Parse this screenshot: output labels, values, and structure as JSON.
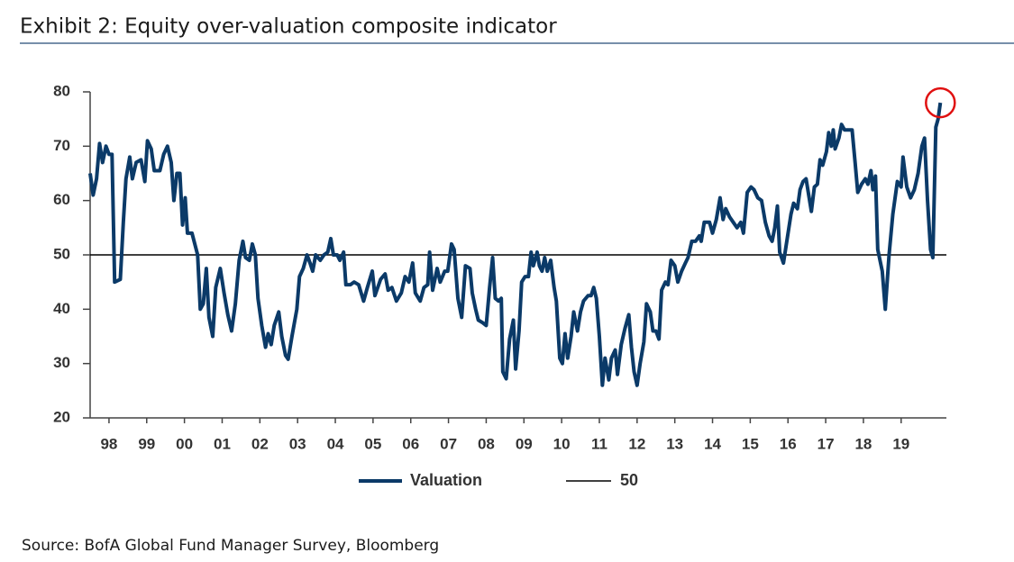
{
  "chart_data": {
    "type": "line",
    "title": "Exhibit 2: Equity over-valuation composite indicator",
    "source": "Source: BofA Global Fund Manager Survey, Bloomberg",
    "x": [
      1998.0,
      1998.08,
      1998.17,
      1998.25,
      1998.33,
      1998.42,
      1998.5,
      1998.58,
      1998.65,
      1998.8,
      1998.88,
      1998.95,
      1999.05,
      1999.12,
      1999.22,
      1999.35,
      1999.45,
      1999.52,
      1999.62,
      1999.7,
      1999.85,
      1999.95,
      2000.05,
      2000.15,
      2000.22,
      2000.3,
      2000.38,
      2000.45,
      2000.52,
      2000.58,
      2000.7,
      2000.85,
      2000.92,
      2001.0,
      2001.08,
      2001.15,
      2001.25,
      2001.33,
      2001.45,
      2001.55,
      2001.65,
      2001.75,
      2001.85,
      2001.95,
      2002.05,
      2002.12,
      2002.22,
      2002.3,
      2002.38,
      2002.45,
      2002.55,
      2002.65,
      2002.72,
      2002.8,
      2002.88,
      2003.0,
      2003.08,
      2003.18,
      2003.25,
      2003.35,
      2003.48,
      2003.55,
      2003.65,
      2003.75,
      2003.83,
      2003.9,
      2003.98,
      2004.1,
      2004.2,
      2004.3,
      2004.38,
      2004.45,
      2004.55,
      2004.62,
      2004.72,
      2004.78,
      2004.9,
      2005.0,
      2005.12,
      2005.25,
      2005.35,
      2005.48,
      2005.55,
      2005.7,
      2005.82,
      2005.9,
      2006.0,
      2006.12,
      2006.25,
      2006.35,
      2006.45,
      2006.55,
      2006.62,
      2006.75,
      2006.85,
      2006.95,
      2007.0,
      2007.08,
      2007.2,
      2007.28,
      2007.4,
      2007.48,
      2007.58,
      2007.65,
      2007.75,
      2007.85,
      2007.95,
      2008.07,
      2008.13,
      2008.22,
      2008.29,
      2008.41,
      2008.5,
      2008.59,
      2008.67,
      2008.74,
      2008.83,
      2008.9,
      2008.94,
      2009.03,
      2009.12,
      2009.22,
      2009.28,
      2009.37,
      2009.44,
      2009.53,
      2009.62,
      2009.69,
      2009.75,
      2009.85,
      2009.91,
      2009.98,
      2010.05,
      2010.12,
      2010.21,
      2010.3,
      2010.36,
      2010.45,
      2010.52,
      2010.59,
      2010.66,
      2010.75,
      2010.82,
      2010.92,
      2011.0,
      2011.08,
      2011.2,
      2011.28,
      2011.35,
      2011.42,
      2011.5,
      2011.58,
      2011.65,
      2011.75,
      2011.82,
      2011.92,
      2011.98,
      2012.08,
      2012.18,
      2012.28,
      2012.35,
      2012.42,
      2012.5,
      2012.58,
      2012.68,
      2012.75,
      2012.85,
      2012.92,
      2013.0,
      2013.08,
      2013.15,
      2013.25,
      2013.32,
      2013.4,
      2013.5,
      2013.58,
      2013.68,
      2013.78,
      2013.85,
      2013.95,
      2014.05,
      2014.15,
      2014.2,
      2014.28,
      2014.42,
      2014.5,
      2014.6,
      2014.7,
      2014.78,
      2014.85,
      2014.95,
      2015.05,
      2015.15,
      2015.25,
      2015.32,
      2015.42,
      2015.52,
      2015.6,
      2015.7,
      2015.8,
      2015.9,
      2016.0,
      2016.08,
      2016.15,
      2016.22,
      2016.28,
      2016.38,
      2016.48,
      2016.58,
      2016.65,
      2016.75,
      2016.82,
      2016.9,
      2016.98,
      2017.05,
      2017.12,
      2017.2,
      2017.28,
      2017.35,
      2017.42,
      2017.52,
      2017.58,
      2017.65,
      2017.7,
      2017.75,
      2017.85,
      2017.92,
      2018.0,
      2018.1,
      2018.2,
      2018.28,
      2018.35,
      2018.45,
      2018.55,
      2018.62,
      2018.7,
      2018.75,
      2018.82,
      2018.88,
      2019.0,
      2019.08,
      2019.18,
      2019.28,
      2019.4,
      2019.5,
      2019.55,
      2019.65,
      2019.75,
      2019.85,
      2019.95,
      2020.05,
      2020.12,
      2020.2,
      2020.28,
      2020.34,
      2020.42,
      2020.48,
      2020.54
    ],
    "series": [
      {
        "name": "Valuation",
        "color": "#0b3a68",
        "values": [
          65,
          61,
          64,
          70.5,
          67,
          70,
          68.5,
          68.5,
          45,
          45.5,
          56,
          64,
          68,
          64,
          67,
          67.5,
          63.5,
          71,
          69.5,
          65.5,
          65.5,
          68.5,
          70,
          67,
          60,
          65,
          65,
          55.5,
          60.5,
          54,
          54,
          50,
          40,
          41,
          47.5,
          38.5,
          35,
          44,
          47.5,
          43,
          39,
          36,
          41,
          49,
          52.5,
          49.5,
          49,
          52,
          50,
          42,
          37,
          33,
          35.5,
          33.5,
          37,
          39.5,
          35,
          31.5,
          30.8,
          35,
          40,
          46,
          47.5,
          50,
          48.5,
          47,
          50,
          49,
          50,
          50.5,
          53,
          50,
          50,
          49,
          50.5,
          44.5,
          44.5,
          45,
          44.5,
          41.5,
          44,
          47,
          42.5,
          45.5,
          46.5,
          43.5,
          44,
          41.5,
          43,
          46,
          45,
          48.5,
          43,
          41.5,
          44,
          44.5,
          50.5,
          43.5,
          47.5,
          45,
          47,
          47,
          52,
          51,
          42,
          38.5,
          48,
          47.5,
          43,
          40,
          38,
          37.5,
          37,
          44,
          49.5,
          42,
          41.5,
          42,
          28.5,
          27.2,
          34.5,
          38,
          29,
          36,
          45,
          46,
          46,
          50.5,
          48,
          50.5,
          48,
          47,
          49.5,
          47,
          49,
          44,
          41.5,
          31,
          30,
          35.5,
          31,
          35,
          39.5,
          36,
          39.5,
          41.5,
          42.5,
          42.5,
          44,
          42,
          35,
          26,
          31,
          27,
          31,
          32.5,
          28,
          33.5,
          36.5,
          39,
          33,
          28.5,
          26,
          30,
          34,
          41,
          39.5,
          36,
          36,
          34.5,
          43.5,
          45,
          44.5,
          49,
          48,
          45,
          47,
          48.5,
          49.5,
          52.5,
          52.5,
          53.5,
          52.5,
          56,
          56,
          54,
          56.5,
          60.5,
          56.5,
          58.5,
          57,
          56,
          55,
          56,
          54,
          61.5,
          62.5,
          62,
          60.5,
          60,
          56,
          53.5,
          52.5,
          55,
          59,
          50.5,
          48.5,
          53,
          57.5,
          59.5,
          58.5,
          62,
          63.5,
          64,
          61,
          58,
          62.5,
          63,
          67.5,
          66.5,
          69,
          72.5,
          70,
          73,
          69.5,
          71.5,
          74,
          73,
          73,
          73,
          67,
          61.5,
          63,
          64,
          63,
          65.5,
          62,
          64.5,
          51,
          47,
          40,
          50,
          57.5,
          63.5,
          62.5,
          68,
          62.5,
          60.5,
          62,
          65,
          70,
          71.5,
          60,
          51,
          49.5,
          73.5,
          75,
          78
        ]
      }
    ],
    "reference_lines": [
      {
        "name": "50",
        "value": 50,
        "color": "#000000"
      }
    ],
    "xlim": [
      1998,
      2020.7
    ],
    "xticks": [
      {
        "value": 1998.5,
        "label": "98"
      },
      {
        "value": 1999.5,
        "label": "99"
      },
      {
        "value": 2000.5,
        "label": "00"
      },
      {
        "value": 2001.5,
        "label": "01"
      },
      {
        "value": 2002.5,
        "label": "02"
      },
      {
        "value": 2003.5,
        "label": "03"
      },
      {
        "value": 2004.5,
        "label": "04"
      },
      {
        "value": 2005.5,
        "label": "05"
      },
      {
        "value": 2006.5,
        "label": "06"
      },
      {
        "value": 2007.5,
        "label": "07"
      },
      {
        "value": 2008.5,
        "label": "08"
      },
      {
        "value": 2009.5,
        "label": "09"
      },
      {
        "value": 2010.5,
        "label": "10"
      },
      {
        "value": 2011.5,
        "label": "11"
      },
      {
        "value": 2012.5,
        "label": "12"
      },
      {
        "value": 2013.5,
        "label": "13"
      },
      {
        "value": 2014.5,
        "label": "14"
      },
      {
        "value": 2015.5,
        "label": "15"
      },
      {
        "value": 2016.5,
        "label": "16"
      },
      {
        "value": 2017.5,
        "label": "17"
      },
      {
        "value": 2018.5,
        "label": "18"
      },
      {
        "value": 2019.5,
        "label": "19"
      }
    ],
    "ylim": [
      20,
      80
    ],
    "yticks": [
      20,
      30,
      40,
      50,
      60,
      70,
      80
    ],
    "grid": false,
    "legend": "bottom"
  }
}
